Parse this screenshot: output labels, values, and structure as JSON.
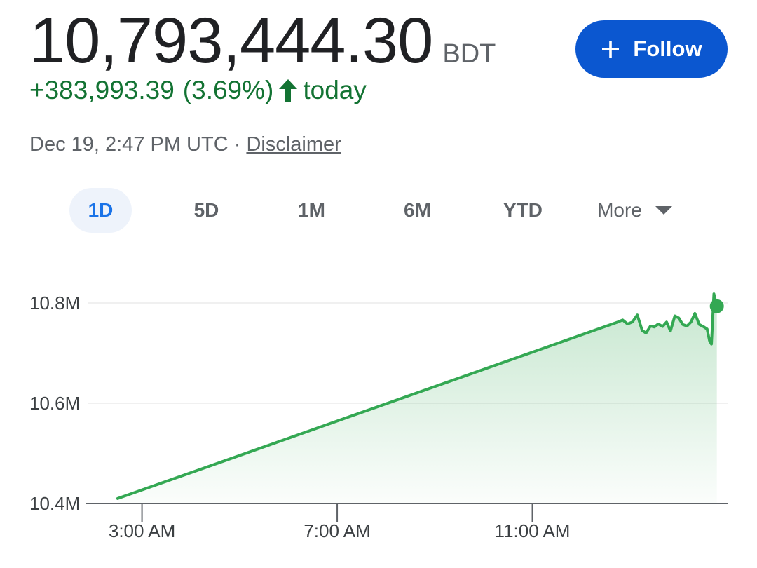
{
  "quote": {
    "price": "10,793,444.30",
    "currency": "BDT",
    "change": "+383,993.39",
    "change_percent": "(3.69%)",
    "change_period": "today",
    "timestamp": "Dec 19, 2:47 PM UTC · ",
    "disclaimer": "Disclaimer"
  },
  "follow_button": {
    "label": "Follow",
    "color": "#0b57d0"
  },
  "range_tabs": [
    {
      "label": "1D",
      "active": true
    },
    {
      "label": "5D",
      "active": false
    },
    {
      "label": "1M",
      "active": false
    },
    {
      "label": "6M",
      "active": false
    },
    {
      "label": "YTD",
      "active": false
    },
    {
      "label": "More",
      "active": false
    }
  ],
  "icons": {
    "follow": "plus-icon",
    "change": "arrow-up-icon",
    "more": "caret-down-icon"
  },
  "colors": {
    "up": "#137333",
    "line": "#34a853"
  },
  "chart_data": {
    "type": "area",
    "x_unit": "hours (UTC)",
    "x": [
      2.5,
      12.75,
      12.85,
      12.95,
      13.05,
      13.15,
      13.25,
      13.33,
      13.42,
      13.5,
      13.58,
      13.67,
      13.75,
      13.83,
      13.92,
      14.0,
      14.08,
      14.17,
      14.25,
      14.33,
      14.42,
      14.5,
      14.58,
      14.63,
      14.67,
      14.72,
      14.78
    ],
    "y": [
      10410000,
      10762000,
      10766000,
      10758000,
      10762000,
      10776000,
      10745000,
      10740000,
      10754000,
      10752000,
      10758000,
      10753000,
      10762000,
      10744000,
      10774000,
      10770000,
      10757000,
      10754000,
      10762000,
      10779000,
      10757000,
      10753000,
      10748000,
      10725000,
      10718000,
      10818000,
      10793444
    ],
    "x_ticks": [
      {
        "value": 3,
        "label": "3:00 AM"
      },
      {
        "value": 7,
        "label": "7:00 AM"
      },
      {
        "value": 11,
        "label": "11:00 AM"
      }
    ],
    "y_ticks": [
      {
        "value": 10400000,
        "label": "10.4M"
      },
      {
        "value": 10600000,
        "label": "10.6M"
      },
      {
        "value": 10800000,
        "label": "10.8M"
      }
    ],
    "xlim": [
      1.9,
      15.0
    ],
    "ylim": [
      10400000,
      10800000
    ],
    "grid": "horizontal",
    "legend": "none"
  }
}
